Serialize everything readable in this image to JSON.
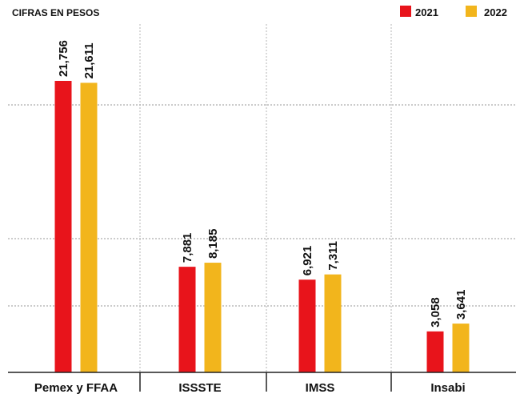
{
  "chart_data": {
    "type": "bar",
    "subtitle": "CIFRAS EN PESOS",
    "categories": [
      "Pemex y FFAA",
      "ISSSTE",
      "IMSS",
      "Insabi"
    ],
    "series": [
      {
        "name": "2021",
        "color": "#e8141b",
        "values": [
          21756,
          7881,
          6921,
          3058
        ]
      },
      {
        "name": "2022",
        "color": "#f2b51c",
        "values": [
          21611,
          8185,
          7311,
          3641
        ]
      }
    ],
    "value_labels": {
      "2021": [
        "21,756",
        "7,881",
        "6,921",
        "3,058"
      ],
      "2022": [
        "21,611",
        "8,185",
        "7,311",
        "3,641"
      ]
    },
    "ylim": [
      0,
      22000
    ],
    "legend_position": "top-right",
    "grid": true
  }
}
